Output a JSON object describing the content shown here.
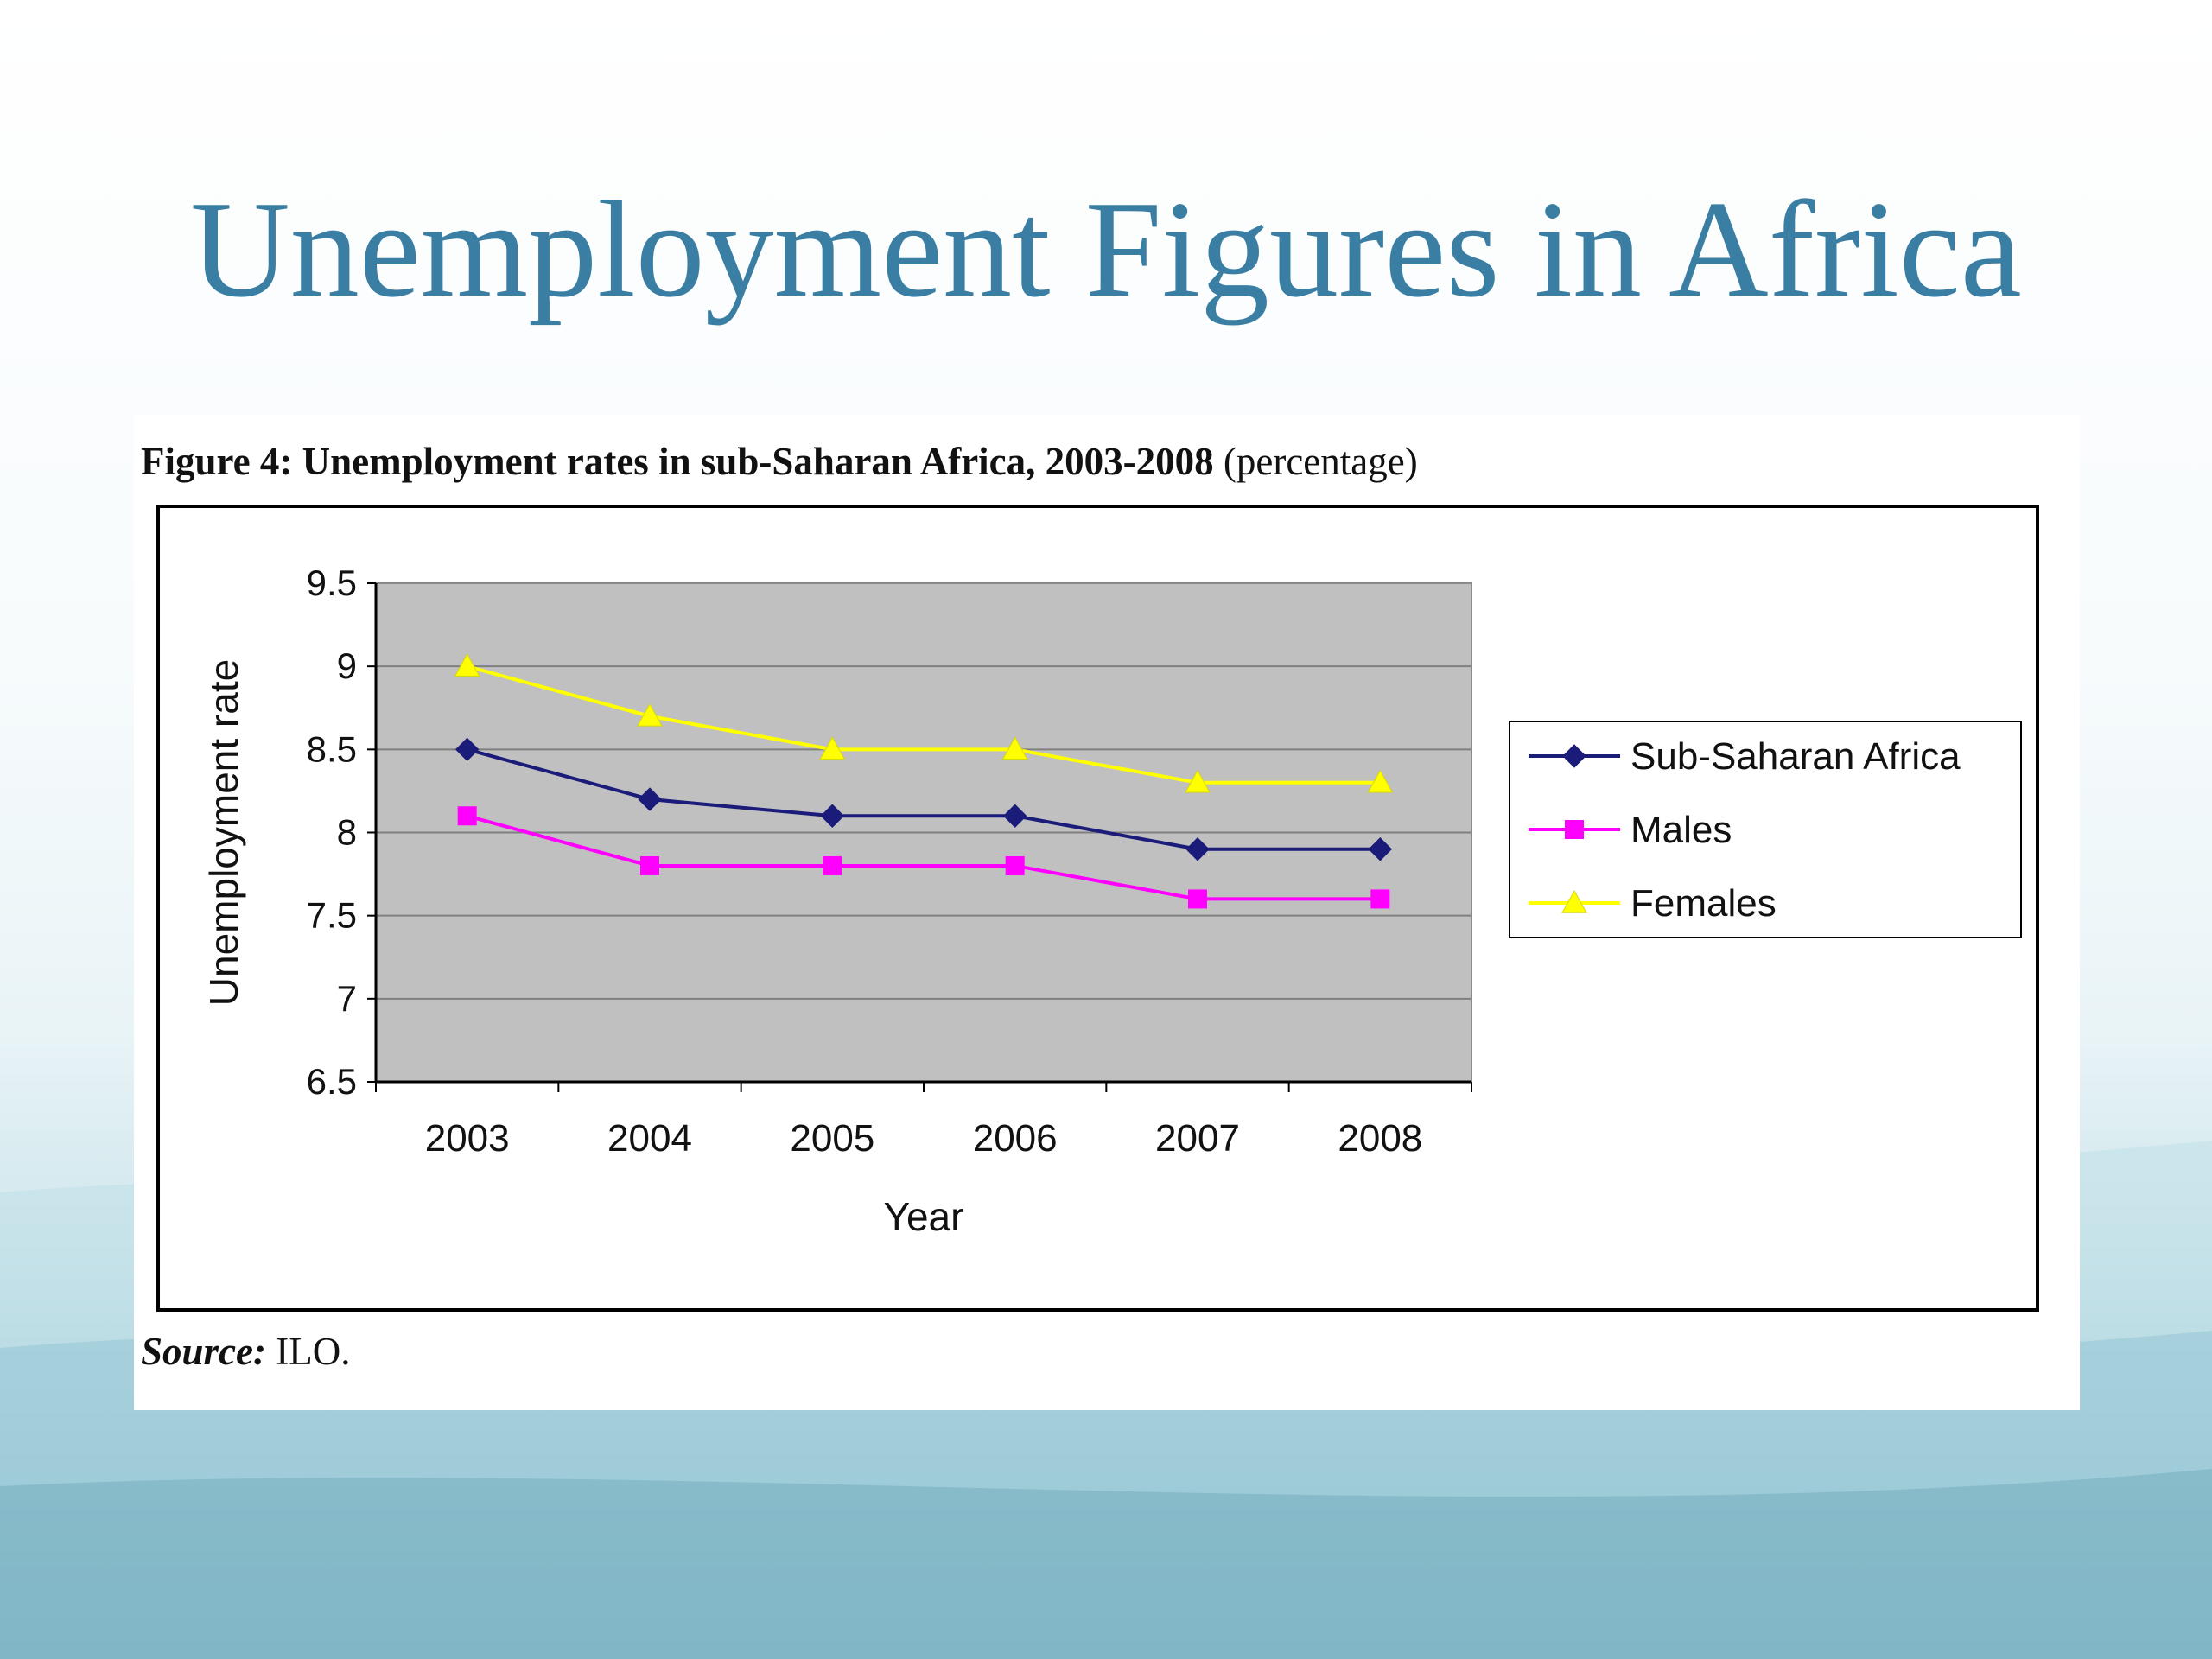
{
  "slide": {
    "title": "Unemployment Figures in Africa"
  },
  "figure": {
    "caption_bold": "Figure 4: Unemployment rates in sub-Saharan Africa, 2003-2008",
    "caption_rest": " (percentage)",
    "source_label": "Source:",
    "source_text": " ILO."
  },
  "chart_data": {
    "type": "line",
    "title": "Figure 4: Unemployment rates in sub-Saharan Africa, 2003-2008 (percentage)",
    "xlabel": "Year",
    "ylabel": "Unemployment rate",
    "categories": [
      "2003",
      "2004",
      "2005",
      "2006",
      "2007",
      "2008"
    ],
    "ylim": [
      6.5,
      9.5
    ],
    "yticks": [
      "6.5",
      "7",
      "7.5",
      "8",
      "8.5",
      "9",
      "9.5"
    ],
    "grid": true,
    "plot_background": "#c0c0c0",
    "legend_position": "right",
    "series": [
      {
        "name": "Sub-Saharan Africa",
        "values": [
          8.5,
          8.2,
          8.1,
          8.1,
          7.9,
          7.9
        ],
        "color": "#1b1b7a",
        "marker": "diamond"
      },
      {
        "name": "Males",
        "values": [
          8.1,
          7.8,
          7.8,
          7.8,
          7.6,
          7.6
        ],
        "color": "#ff00ff",
        "marker": "square"
      },
      {
        "name": "Females",
        "values": [
          9.0,
          8.7,
          8.5,
          8.5,
          8.3,
          8.3
        ],
        "color": "#ffff00",
        "marker": "triangle"
      }
    ]
  }
}
